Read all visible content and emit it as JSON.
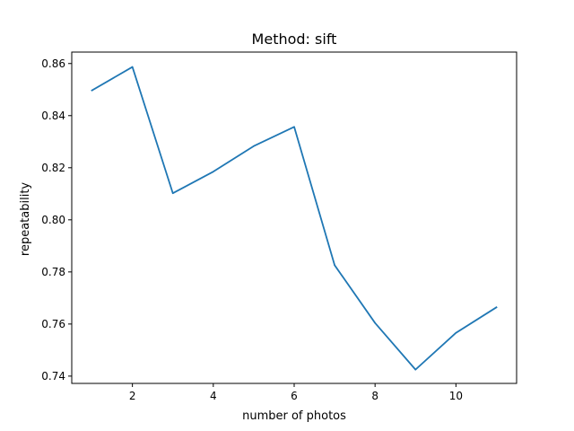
{
  "chart_data": {
    "type": "line",
    "title": "Method: sift",
    "xlabel": "number of photos",
    "ylabel": "repeatability",
    "xlim": [
      0.5,
      11.5
    ],
    "ylim": [
      0.7372,
      0.8644
    ],
    "xticks": [
      2,
      4,
      6,
      8,
      10
    ],
    "xtick_labels": [
      "2",
      "4",
      "6",
      "8",
      "10"
    ],
    "yticks": [
      0.74,
      0.76,
      0.78,
      0.8,
      0.82,
      0.84,
      0.86
    ],
    "ytick_labels": [
      "0.74",
      "0.76",
      "0.78",
      "0.80",
      "0.82",
      "0.84",
      "0.86"
    ],
    "grid": false,
    "series": [
      {
        "color": "#1f77b4",
        "x": [
          1,
          2,
          3,
          4,
          5,
          6,
          7,
          8,
          9,
          10,
          11
        ],
        "values": [
          0.8497,
          0.8587,
          0.8102,
          0.8185,
          0.8283,
          0.8357,
          0.7826,
          0.7604,
          0.7425,
          0.7566,
          0.7664
        ]
      }
    ]
  }
}
